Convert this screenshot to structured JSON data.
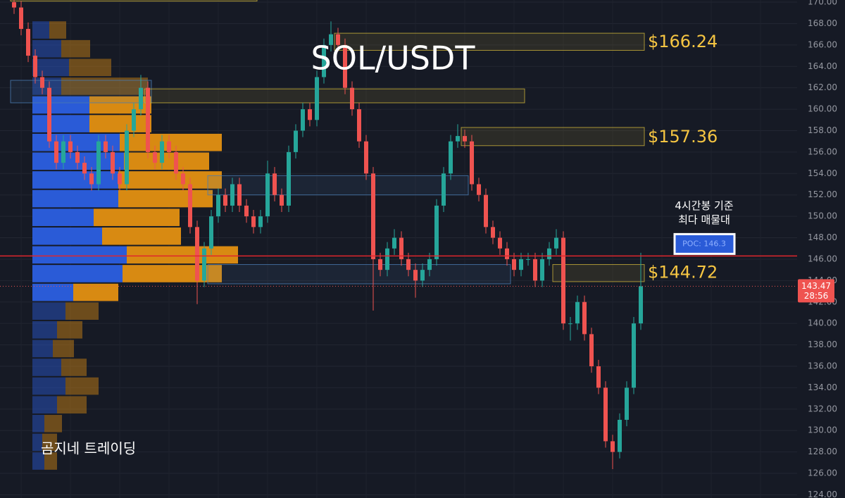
{
  "chart_data": {
    "type": "candlestick",
    "title": "SOL/USDT",
    "watermark": "곰지네 트레이딩",
    "annotation": [
      "4시간봉 기준",
      "최다 매물대"
    ],
    "ylim": [
      123.7,
      170.2
    ],
    "yticks": [
      {
        "value": 124,
        "label": "124.00"
      },
      {
        "value": 126,
        "label": "126.00"
      },
      {
        "value": 128,
        "label": "128.00"
      },
      {
        "value": 130,
        "label": "130.00"
      },
      {
        "value": 132,
        "label": "132.00"
      },
      {
        "value": 134,
        "label": "134.00"
      },
      {
        "value": 136,
        "label": "136.00"
      },
      {
        "value": 138,
        "label": "138.00"
      },
      {
        "value": 140,
        "label": "140.00"
      },
      {
        "value": 142,
        "label": "142.00"
      },
      {
        "value": 144,
        "label": "144.00"
      },
      {
        "value": 146,
        "label": "146.00"
      },
      {
        "value": 148,
        "label": "148.00"
      },
      {
        "value": 150,
        "label": "150.00"
      },
      {
        "value": 152,
        "label": "152.00"
      },
      {
        "value": 154,
        "label": "154.00"
      },
      {
        "value": 156,
        "label": "156.00"
      },
      {
        "value": 158,
        "label": "158.00"
      },
      {
        "value": 160,
        "label": "160.00"
      },
      {
        "value": 162,
        "label": "162.00"
      },
      {
        "value": 164,
        "label": "164.00"
      },
      {
        "value": 166,
        "label": "166.00"
      },
      {
        "value": 168,
        "label": "168.00"
      },
      {
        "value": 170,
        "label": "170.00"
      }
    ],
    "grid": true,
    "up_color": "#26a69a",
    "down_color": "#ef5350",
    "candles": [
      [
        170,
        170.6,
        168.9,
        169.5
      ],
      [
        169.5,
        170.1,
        166.9,
        167.5
      ],
      [
        167.5,
        168.1,
        164.4,
        165
      ],
      [
        165,
        165.6,
        162.4,
        163
      ],
      [
        163,
        163.6,
        161.4,
        162
      ],
      [
        162,
        162.6,
        156.4,
        157
      ],
      [
        157,
        157.6,
        154.4,
        155
      ],
      [
        155,
        157.6,
        154.4,
        157
      ],
      [
        157,
        157.6,
        155.4,
        156
      ],
      [
        156,
        156.6,
        154.4,
        155
      ],
      [
        155,
        155.6,
        153.4,
        154
      ],
      [
        154,
        154.6,
        152.4,
        153
      ],
      [
        153,
        157.6,
        152.4,
        157
      ],
      [
        157,
        157.6,
        155.4,
        156
      ],
      [
        156,
        156.6,
        153.4,
        154
      ],
      [
        154,
        154.6,
        152.4,
        153
      ],
      [
        153,
        158.6,
        152.4,
        158
      ],
      [
        158,
        160.6,
        157.4,
        160
      ],
      [
        160,
        163.2,
        159.4,
        162
      ],
      [
        162,
        162.6,
        155.4,
        156
      ],
      [
        156,
        156.6,
        154.4,
        155
      ],
      [
        155,
        157.6,
        154.4,
        157
      ],
      [
        157,
        157.6,
        155.4,
        156
      ],
      [
        156,
        156.6,
        153.4,
        154
      ],
      [
        154,
        154.6,
        152.4,
        153
      ],
      [
        153,
        153.6,
        148.4,
        149
      ],
      [
        149,
        149.6,
        141.8,
        144
      ],
      [
        144,
        147.6,
        143.4,
        147
      ],
      [
        147,
        150.6,
        146.4,
        150
      ],
      [
        150,
        152.6,
        149.4,
        152
      ],
      [
        152,
        152.6,
        150.4,
        151
      ],
      [
        151,
        153.6,
        150.4,
        153
      ],
      [
        153,
        153.6,
        150.4,
        151
      ],
      [
        151,
        151.6,
        149.4,
        150
      ],
      [
        150,
        150.6,
        148.4,
        149
      ],
      [
        149,
        150.6,
        148.4,
        150
      ],
      [
        150,
        155.2,
        149.4,
        154
      ],
      [
        154,
        154.6,
        151.4,
        152
      ],
      [
        152,
        152.6,
        150.4,
        151
      ],
      [
        151,
        156.6,
        150.4,
        156
      ],
      [
        156,
        158.6,
        155.4,
        158
      ],
      [
        158,
        160.6,
        157.4,
        160
      ],
      [
        160,
        160.6,
        158.4,
        159
      ],
      [
        159,
        163.6,
        158.4,
        163
      ],
      [
        163,
        166.6,
        162.4,
        166
      ],
      [
        166,
        168.2,
        165.4,
        167
      ],
      [
        167,
        167.6,
        165.4,
        166
      ],
      [
        166,
        166.6,
        161.4,
        162
      ],
      [
        162,
        162.6,
        159.4,
        160
      ],
      [
        160,
        160.6,
        156.4,
        157
      ],
      [
        157,
        157.6,
        153.4,
        154
      ],
      [
        154,
        154.6,
        141.2,
        146
      ],
      [
        146,
        146.6,
        144.4,
        145
      ],
      [
        145,
        147.6,
        144.4,
        147
      ],
      [
        147,
        148.8,
        146.4,
        148
      ],
      [
        148,
        148.6,
        145.4,
        146
      ],
      [
        146,
        146.6,
        144.4,
        145
      ],
      [
        145,
        145.6,
        142.4,
        144
      ],
      [
        144,
        145.6,
        143.4,
        145
      ],
      [
        145,
        146.6,
        144.4,
        146
      ],
      [
        146,
        151.6,
        145.4,
        151
      ],
      [
        151,
        154.6,
        150.4,
        154
      ],
      [
        154,
        157.6,
        153.4,
        157
      ],
      [
        157,
        158.6,
        156.4,
        157.5
      ],
      [
        157.5,
        158.1,
        156.4,
        157
      ],
      [
        157,
        157.6,
        152.4,
        153
      ],
      [
        153,
        153.6,
        151.4,
        152
      ],
      [
        152,
        152.6,
        148.4,
        149
      ],
      [
        149,
        149.6,
        147.4,
        148
      ],
      [
        148,
        148.6,
        146.4,
        147
      ],
      [
        147,
        147.6,
        145.4,
        146
      ],
      [
        146,
        146.6,
        144.4,
        145
      ],
      [
        145,
        146.6,
        144.4,
        146
      ],
      [
        146,
        146.6,
        145.4,
        146
      ],
      [
        146,
        146.6,
        143.4,
        144
      ],
      [
        144,
        146.6,
        143.4,
        146
      ],
      [
        146,
        147.6,
        145.4,
        147
      ],
      [
        147,
        148.8,
        146.4,
        148
      ],
      [
        148,
        148.6,
        139.4,
        140
      ],
      [
        140,
        140.6,
        138.4,
        140
      ],
      [
        140,
        142.6,
        139.4,
        142
      ],
      [
        142,
        142.6,
        138.4,
        139
      ],
      [
        139,
        139.6,
        135.4,
        136
      ],
      [
        136,
        136.6,
        133.4,
        134
      ],
      [
        134,
        134.6,
        128.4,
        129
      ],
      [
        129,
        129.6,
        126.4,
        128
      ],
      [
        128,
        131.6,
        127.4,
        131
      ],
      [
        131,
        134.6,
        130.4,
        134
      ],
      [
        134,
        140.6,
        133.4,
        140
      ],
      [
        140,
        146.6,
        139.4,
        143.47
      ]
    ],
    "last_price": 143.47,
    "countdown": "28:56",
    "poc": {
      "value": 146.3,
      "label": "POC: 146.3"
    },
    "zones": [
      {
        "start": 0,
        "end": 34,
        "low": 170.1,
        "high": 171,
        "color": "#c9b03a"
      },
      {
        "start": 0,
        "end": 19,
        "low": 160.6,
        "high": 162.7,
        "color": "#4a7bb0"
      },
      {
        "start": 19,
        "end": 72,
        "low": 160.6,
        "high": 161.9,
        "color": "#c9b03a"
      },
      {
        "start": 46,
        "end": 89,
        "low": 165.5,
        "high": 167.1,
        "color": "#c9b03a",
        "level": 166.24,
        "label": "$166.24"
      },
      {
        "start": 64,
        "end": 89,
        "low": 156.6,
        "high": 158.3,
        "color": "#c9b03a",
        "level": 157.36,
        "label": "$157.36"
      },
      {
        "start": 28,
        "end": 64,
        "low": 152,
        "high": 153.8,
        "color": "#4a7bb0"
      },
      {
        "start": 28,
        "end": 70,
        "low": 143.7,
        "high": 145.5,
        "color": "#4a7bb0"
      },
      {
        "start": 77,
        "end": 89,
        "low": 143.9,
        "high": 145.5,
        "color": "#c9b03a",
        "level": 144.72,
        "label": "$144.72"
      }
    ],
    "volume_profile": {
      "row_size": 1.75,
      "value_area": [
        142,
        161.5
      ],
      "buy_color": "#2a5bd7",
      "sell_color": "#d88a12",
      "prices": [
        167.4,
        165.65,
        163.9,
        162.15,
        160.4,
        158.65,
        156.9,
        155.15,
        153.4,
        151.65,
        149.9,
        148.15,
        146.4,
        144.65,
        142.9,
        141.15,
        139.4,
        137.65,
        135.9,
        134.15,
        132.4,
        130.65,
        128.9,
        127.15
      ],
      "buy": [
        24,
        41,
        52,
        41,
        81,
        81,
        124,
        130,
        122,
        122,
        87,
        99,
        134,
        128,
        58,
        47,
        35,
        29,
        41,
        47,
        35,
        17,
        14,
        17
      ],
      "sell": [
        24,
        41,
        60,
        123,
        88,
        88,
        145,
        121,
        147,
        134,
        122,
        112,
        158,
        141,
        64,
        47,
        36,
        30,
        36,
        47,
        42,
        25,
        21,
        18
      ]
    }
  }
}
